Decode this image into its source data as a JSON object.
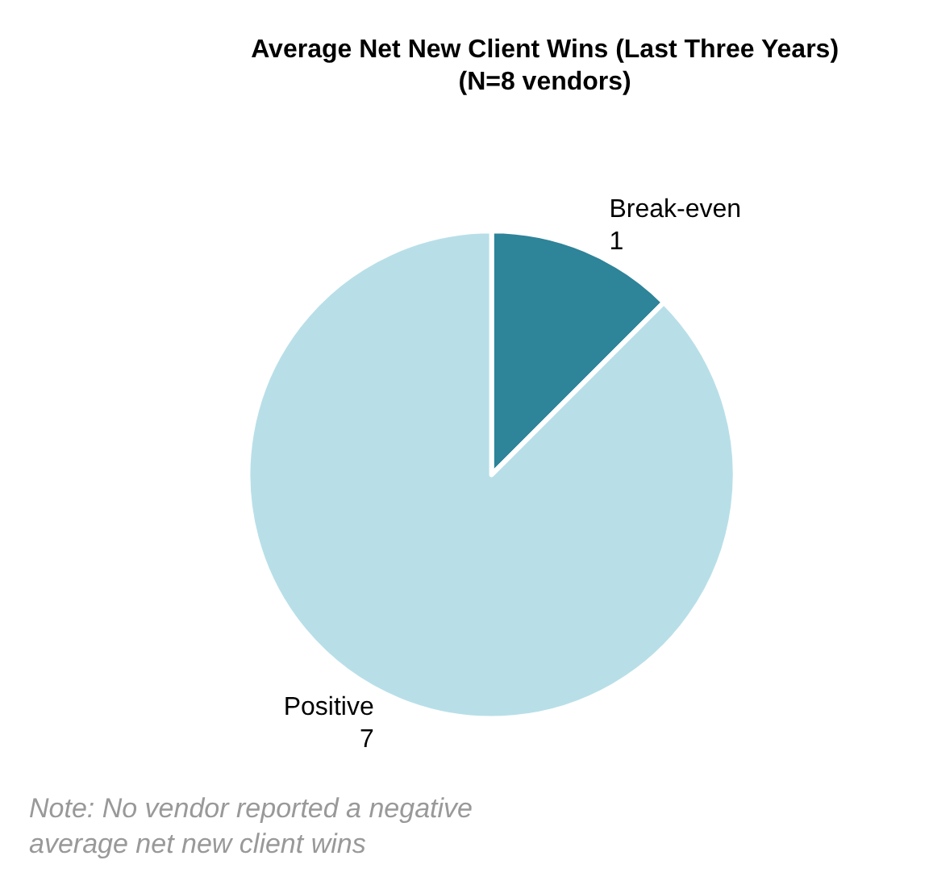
{
  "chart_data": {
    "type": "pie",
    "title": "Average Net New Client Wins (Last Three Years)\n(N=8 vendors)",
    "categories": [
      "Break-even",
      "Positive"
    ],
    "values": [
      1,
      7
    ],
    "colors": [
      "#2e8499",
      "#b8dfe8"
    ],
    "data_labels": true,
    "legend": false,
    "annotations": [
      "Note: No vendor reported a negative\naverage net new client wins"
    ]
  }
}
